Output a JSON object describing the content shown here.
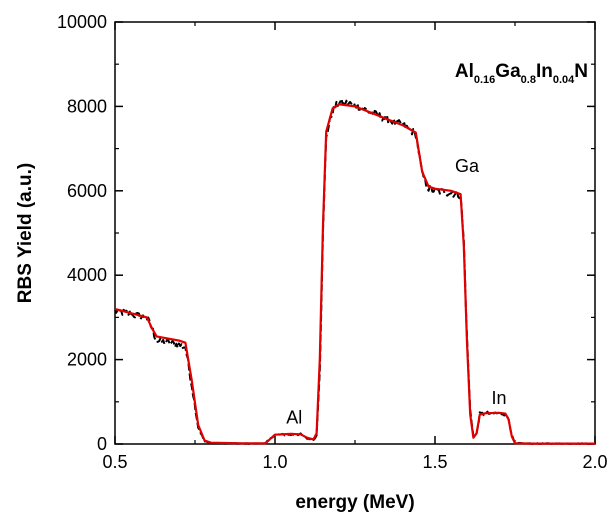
{
  "chart_data": {
    "type": "line",
    "title": "",
    "xlabel": "energy (MeV)",
    "ylabel": "RBS Yield (a.u.)",
    "xlim": [
      0.5,
      2.0
    ],
    "ylim": [
      0,
      10000
    ],
    "grid": false,
    "x_ticks": [
      "0.5",
      "1.0",
      "1.5",
      "2.0"
    ],
    "y_ticks": [
      "0",
      "2000",
      "4000",
      "6000",
      "8000",
      "10000"
    ],
    "formula": {
      "parts": [
        {
          "text": "Al",
          "sub": "0.16"
        },
        {
          "text": "Ga",
          "sub": "0.8"
        },
        {
          "text": "In",
          "sub": "0.04"
        },
        {
          "text": "N",
          "sub": ""
        }
      ]
    },
    "annotations": [
      {
        "text": "Ga",
        "x": 1.6,
        "y": 6450
      },
      {
        "text": "Al",
        "x": 1.06,
        "y": 480
      },
      {
        "text": "In",
        "x": 1.7,
        "y": 950
      }
    ],
    "series": [
      {
        "color": "#000000",
        "style": "dashed",
        "noise": 90,
        "x": [
          0.5,
          0.55,
          0.6,
          0.615,
          0.63,
          0.7,
          0.72,
          0.74,
          0.76,
          0.78,
          0.8,
          0.9,
          0.97,
          0.98,
          1.0,
          1.05,
          1.08,
          1.1,
          1.12,
          1.13,
          1.14,
          1.15,
          1.16,
          1.18,
          1.2,
          1.25,
          1.3,
          1.35,
          1.4,
          1.44,
          1.46,
          1.48,
          1.5,
          1.55,
          1.58,
          1.59,
          1.6,
          1.61,
          1.62,
          1.63,
          1.64,
          1.66,
          1.7,
          1.72,
          1.73,
          1.74,
          1.75,
          1.8,
          1.9,
          2.0
        ],
        "y": [
          3150,
          3080,
          2980,
          2750,
          2450,
          2350,
          2300,
          1400,
          400,
          60,
          20,
          10,
          10,
          100,
          220,
          220,
          230,
          130,
          100,
          200,
          1800,
          5000,
          7300,
          7900,
          8100,
          8050,
          7850,
          7700,
          7550,
          7350,
          6400,
          6050,
          6000,
          5950,
          5900,
          4800,
          2500,
          800,
          200,
          250,
          700,
          720,
          730,
          720,
          600,
          200,
          20,
          10,
          10,
          10
        ]
      },
      {
        "color": "#e00000",
        "style": "solid",
        "noise": 0,
        "x": [
          0.5,
          0.55,
          0.6,
          0.615,
          0.63,
          0.7,
          0.72,
          0.74,
          0.76,
          0.78,
          0.8,
          0.9,
          0.97,
          0.985,
          1.0,
          1.05,
          1.08,
          1.1,
          1.12,
          1.13,
          1.14,
          1.15,
          1.16,
          1.18,
          1.2,
          1.25,
          1.3,
          1.35,
          1.4,
          1.44,
          1.46,
          1.48,
          1.5,
          1.55,
          1.58,
          1.59,
          1.6,
          1.61,
          1.62,
          1.63,
          1.64,
          1.66,
          1.7,
          1.72,
          1.73,
          1.74,
          1.75,
          1.8,
          1.9,
          2.0
        ],
        "y": [
          3200,
          3100,
          3000,
          2750,
          2550,
          2450,
          2400,
          1500,
          450,
          80,
          30,
          15,
          15,
          120,
          220,
          240,
          230,
          150,
          110,
          250,
          2000,
          5200,
          7400,
          7950,
          8050,
          8000,
          7850,
          7700,
          7550,
          7380,
          6450,
          6100,
          6050,
          6000,
          5920,
          4700,
          2400,
          700,
          150,
          250,
          700,
          730,
          740,
          720,
          580,
          180,
          20,
          10,
          10,
          10
        ]
      }
    ]
  }
}
